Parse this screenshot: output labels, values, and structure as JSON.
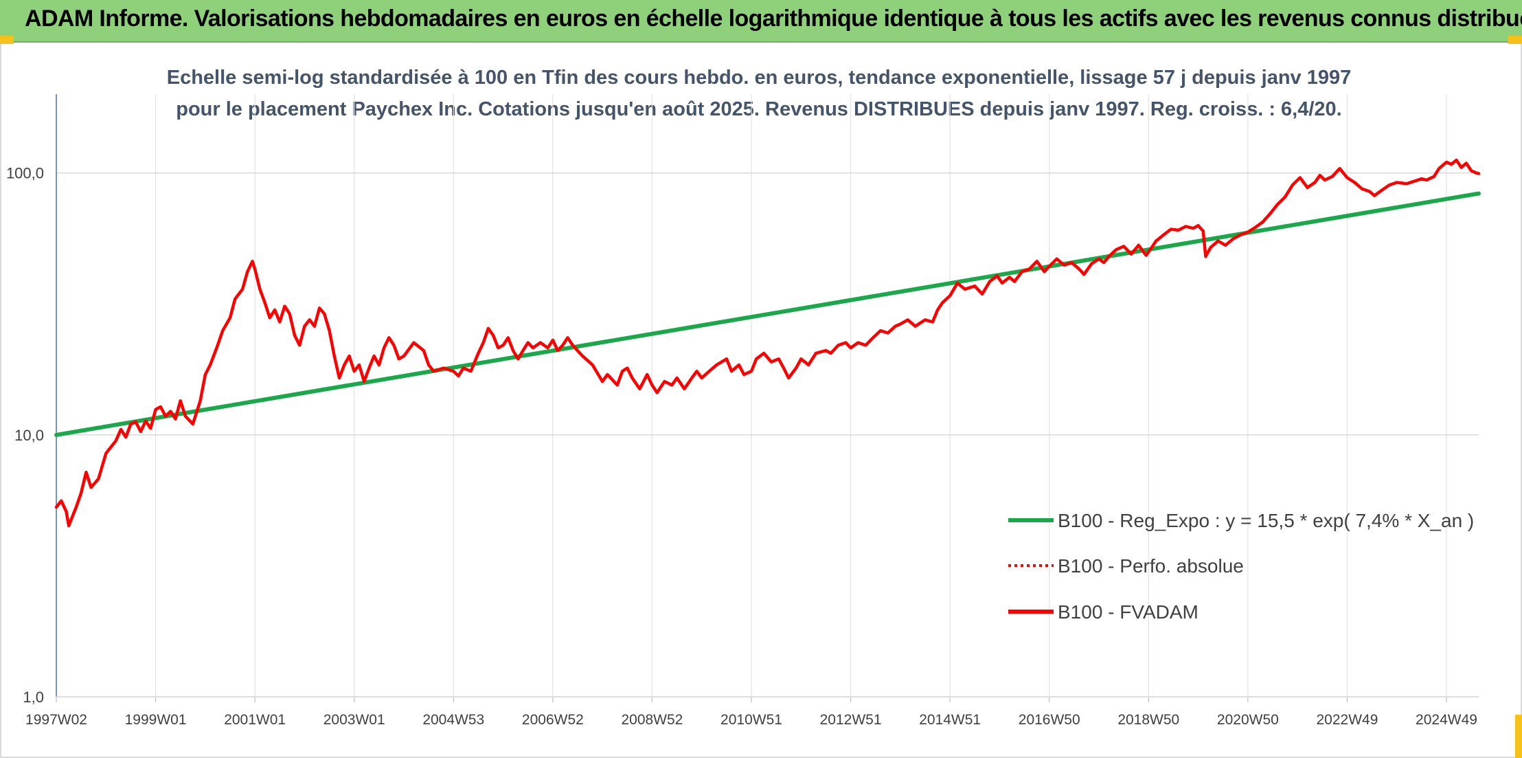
{
  "header": {
    "title": "ADAM Informe. Valorisations hebdomadaires en euros en échelle logarithmique identique à tous les actifs avec les revenus connus distribués"
  },
  "chart_data": {
    "type": "line",
    "title": "Echelle semi-log standardisée à 100 en Tfin des cours hebdo. en euros, tendance exponentielle, lissage 57 j depuis janv 1997 pour le placement Paychex Inc. Cotations jusqu'en août 2025. Revenus DISTRIBUES depuis janv 1997. Reg. croiss. : 6,4/20.",
    "y_scale": "log",
    "ylim": [
      1,
      200
    ],
    "y_ticks": [
      {
        "value": 1,
        "label": "1,0"
      },
      {
        "value": 10,
        "label": "10,0"
      },
      {
        "value": 100,
        "label": "100,0"
      }
    ],
    "x_range": [
      1997.0,
      2025.65
    ],
    "x_ticks": [
      {
        "label": "1997W02",
        "year": 1997.0
      },
      {
        "label": "1999W01",
        "year": 1999.0
      },
      {
        "label": "2001W01",
        "year": 2001.0
      },
      {
        "label": "2003W01",
        "year": 2003.0
      },
      {
        "label": "2004W53",
        "year": 2005.0
      },
      {
        "label": "2006W52",
        "year": 2007.0
      },
      {
        "label": "2008W52",
        "year": 2009.0
      },
      {
        "label": "2010W51",
        "year": 2011.0
      },
      {
        "label": "2012W51",
        "year": 2013.0
      },
      {
        "label": "2014W51",
        "year": 2015.0
      },
      {
        "label": "2016W50",
        "year": 2017.0
      },
      {
        "label": "2018W50",
        "year": 2019.0
      },
      {
        "label": "2020W50",
        "year": 2021.0
      },
      {
        "label": "2022W49",
        "year": 2023.0
      },
      {
        "label": "2024W49",
        "year": 2025.0
      }
    ],
    "grid": true,
    "legend_position": "bottom-right",
    "series": [
      {
        "name": "B100 - Reg_Expo : y = 15,5 * exp( 7,4% *  X_an )",
        "color": "#1aa84a",
        "style": "solid",
        "points": [
          [
            1997.0,
            10.0
          ],
          [
            2025.65,
            83.5
          ]
        ]
      },
      {
        "name": "B100 - Perfo. absolue",
        "color": "#ff0000",
        "style": "dotted",
        "points": []
      },
      {
        "name": "B100 - FVADAM",
        "color": "#ff0000",
        "style": "solid",
        "points": [
          [
            1997.0,
            5.3
          ],
          [
            1997.1,
            5.6
          ],
          [
            1997.2,
            5.1
          ],
          [
            1997.25,
            4.5
          ],
          [
            1997.4,
            5.3
          ],
          [
            1997.5,
            6.0
          ],
          [
            1997.6,
            7.2
          ],
          [
            1997.7,
            6.3
          ],
          [
            1997.85,
            6.8
          ],
          [
            1998.0,
            8.5
          ],
          [
            1998.2,
            9.5
          ],
          [
            1998.3,
            10.5
          ],
          [
            1998.4,
            9.8
          ],
          [
            1998.5,
            11.0
          ],
          [
            1998.6,
            11.2
          ],
          [
            1998.7,
            10.3
          ],
          [
            1998.8,
            11.3
          ],
          [
            1998.9,
            10.6
          ],
          [
            1999.0,
            12.5
          ],
          [
            1999.1,
            12.8
          ],
          [
            1999.2,
            11.8
          ],
          [
            1999.3,
            12.3
          ],
          [
            1999.4,
            11.5
          ],
          [
            1999.5,
            13.5
          ],
          [
            1999.6,
            11.8
          ],
          [
            1999.75,
            11.0
          ],
          [
            1999.9,
            13.5
          ],
          [
            2000.0,
            17.0
          ],
          [
            2000.1,
            18.5
          ],
          [
            2000.25,
            22.0
          ],
          [
            2000.35,
            25.0
          ],
          [
            2000.5,
            28.0
          ],
          [
            2000.6,
            33.0
          ],
          [
            2000.75,
            36.0
          ],
          [
            2000.85,
            42.0
          ],
          [
            2000.95,
            46.0
          ],
          [
            2001.0,
            43.0
          ],
          [
            2001.1,
            36.0
          ],
          [
            2001.2,
            32.0
          ],
          [
            2001.3,
            28.0
          ],
          [
            2001.4,
            30.0
          ],
          [
            2001.5,
            27.0
          ],
          [
            2001.6,
            31.0
          ],
          [
            2001.7,
            29.0
          ],
          [
            2001.8,
            24.0
          ],
          [
            2001.9,
            22.0
          ],
          [
            2002.0,
            26.0
          ],
          [
            2002.1,
            27.5
          ],
          [
            2002.2,
            26.0
          ],
          [
            2002.3,
            30.5
          ],
          [
            2002.4,
            29.0
          ],
          [
            2002.5,
            25.0
          ],
          [
            2002.6,
            20.0
          ],
          [
            2002.7,
            16.5
          ],
          [
            2002.8,
            18.5
          ],
          [
            2002.9,
            20.0
          ],
          [
            2003.0,
            17.5
          ],
          [
            2003.1,
            18.5
          ],
          [
            2003.2,
            16.0
          ],
          [
            2003.3,
            18.0
          ],
          [
            2003.4,
            20.0
          ],
          [
            2003.5,
            18.5
          ],
          [
            2003.6,
            21.5
          ],
          [
            2003.7,
            23.5
          ],
          [
            2003.8,
            22.0
          ],
          [
            2003.9,
            19.5
          ],
          [
            2004.0,
            20.0
          ],
          [
            2004.2,
            22.5
          ],
          [
            2004.4,
            21.0
          ],
          [
            2004.5,
            18.5
          ],
          [
            2004.6,
            17.5
          ],
          [
            2004.8,
            18.0
          ],
          [
            2005.0,
            17.5
          ],
          [
            2005.1,
            16.8
          ],
          [
            2005.2,
            18.0
          ],
          [
            2005.35,
            17.5
          ],
          [
            2005.5,
            20.5
          ],
          [
            2005.6,
            22.5
          ],
          [
            2005.7,
            25.5
          ],
          [
            2005.8,
            24.0
          ],
          [
            2005.9,
            21.5
          ],
          [
            2006.0,
            22.0
          ],
          [
            2006.1,
            23.5
          ],
          [
            2006.2,
            21.0
          ],
          [
            2006.3,
            19.5
          ],
          [
            2006.4,
            21.0
          ],
          [
            2006.5,
            22.5
          ],
          [
            2006.6,
            21.5
          ],
          [
            2006.75,
            22.5
          ],
          [
            2006.9,
            21.5
          ],
          [
            2007.0,
            23.0
          ],
          [
            2007.1,
            21.0
          ],
          [
            2007.2,
            22.0
          ],
          [
            2007.3,
            23.5
          ],
          [
            2007.4,
            22.0
          ],
          [
            2007.6,
            20.0
          ],
          [
            2007.8,
            18.5
          ],
          [
            2008.0,
            16.0
          ],
          [
            2008.1,
            17.0
          ],
          [
            2008.3,
            15.5
          ],
          [
            2008.4,
            17.5
          ],
          [
            2008.5,
            18.0
          ],
          [
            2008.6,
            16.5
          ],
          [
            2008.75,
            15.0
          ],
          [
            2008.9,
            17.0
          ],
          [
            2009.0,
            15.5
          ],
          [
            2009.1,
            14.5
          ],
          [
            2009.25,
            16.0
          ],
          [
            2009.4,
            15.5
          ],
          [
            2009.5,
            16.5
          ],
          [
            2009.65,
            15.0
          ],
          [
            2009.8,
            16.5
          ],
          [
            2009.9,
            17.5
          ],
          [
            2010.0,
            16.5
          ],
          [
            2010.15,
            17.5
          ],
          [
            2010.3,
            18.5
          ],
          [
            2010.5,
            19.5
          ],
          [
            2010.6,
            17.5
          ],
          [
            2010.75,
            18.5
          ],
          [
            2010.85,
            17.0
          ],
          [
            2011.0,
            17.5
          ],
          [
            2011.1,
            19.5
          ],
          [
            2011.25,
            20.5
          ],
          [
            2011.4,
            19.0
          ],
          [
            2011.55,
            19.5
          ],
          [
            2011.65,
            18.0
          ],
          [
            2011.75,
            16.5
          ],
          [
            2011.9,
            18.0
          ],
          [
            2012.0,
            19.5
          ],
          [
            2012.15,
            18.5
          ],
          [
            2012.3,
            20.5
          ],
          [
            2012.5,
            21.0
          ],
          [
            2012.6,
            20.5
          ],
          [
            2012.75,
            22.0
          ],
          [
            2012.9,
            22.5
          ],
          [
            2013.0,
            21.5
          ],
          [
            2013.15,
            22.5
          ],
          [
            2013.3,
            22.0
          ],
          [
            2013.45,
            23.5
          ],
          [
            2013.6,
            25.0
          ],
          [
            2013.75,
            24.5
          ],
          [
            2013.9,
            26.0
          ],
          [
            2014.0,
            26.5
          ],
          [
            2014.15,
            27.5
          ],
          [
            2014.3,
            26.0
          ],
          [
            2014.5,
            27.5
          ],
          [
            2014.65,
            27.0
          ],
          [
            2014.75,
            30.0
          ],
          [
            2014.85,
            32.0
          ],
          [
            2015.0,
            34.0
          ],
          [
            2015.15,
            38.0
          ],
          [
            2015.3,
            36.0
          ],
          [
            2015.5,
            37.0
          ],
          [
            2015.65,
            34.5
          ],
          [
            2015.8,
            38.5
          ],
          [
            2015.95,
            40.5
          ],
          [
            2016.05,
            38.0
          ],
          [
            2016.2,
            40.0
          ],
          [
            2016.3,
            38.5
          ],
          [
            2016.45,
            42.0
          ],
          [
            2016.6,
            43.0
          ],
          [
            2016.75,
            46.0
          ],
          [
            2016.9,
            42.0
          ],
          [
            2017.0,
            44.0
          ],
          [
            2017.15,
            47.0
          ],
          [
            2017.3,
            44.5
          ],
          [
            2017.45,
            45.5
          ],
          [
            2017.6,
            43.0
          ],
          [
            2017.7,
            41.0
          ],
          [
            2017.85,
            45.0
          ],
          [
            2018.0,
            47.0
          ],
          [
            2018.1,
            45.5
          ],
          [
            2018.2,
            48.0
          ],
          [
            2018.35,
            51.0
          ],
          [
            2018.5,
            52.5
          ],
          [
            2018.65,
            49.0
          ],
          [
            2018.8,
            53.0
          ],
          [
            2018.95,
            48.5
          ],
          [
            2019.05,
            51.5
          ],
          [
            2019.15,
            55.0
          ],
          [
            2019.3,
            58.0
          ],
          [
            2019.45,
            61.0
          ],
          [
            2019.6,
            60.5
          ],
          [
            2019.75,
            62.5
          ],
          [
            2019.9,
            61.5
          ],
          [
            2020.0,
            63.0
          ],
          [
            2020.1,
            60.0
          ],
          [
            2020.15,
            48.0
          ],
          [
            2020.25,
            52.0
          ],
          [
            2020.4,
            55.0
          ],
          [
            2020.55,
            53.0
          ],
          [
            2020.7,
            56.0
          ],
          [
            2020.85,
            58.0
          ],
          [
            2021.0,
            59.5
          ],
          [
            2021.15,
            62.0
          ],
          [
            2021.3,
            65.0
          ],
          [
            2021.45,
            70.0
          ],
          [
            2021.6,
            76.0
          ],
          [
            2021.75,
            81.0
          ],
          [
            2021.9,
            90.0
          ],
          [
            2022.05,
            96.0
          ],
          [
            2022.2,
            88.0
          ],
          [
            2022.35,
            92.0
          ],
          [
            2022.45,
            98.0
          ],
          [
            2022.55,
            94.0
          ],
          [
            2022.7,
            97.0
          ],
          [
            2022.85,
            104.0
          ],
          [
            2023.0,
            96.0
          ],
          [
            2023.15,
            92.0
          ],
          [
            2023.3,
            87.0
          ],
          [
            2023.45,
            85.0
          ],
          [
            2023.55,
            82.0
          ],
          [
            2023.7,
            86.0
          ],
          [
            2023.85,
            90.0
          ],
          [
            2024.0,
            92.0
          ],
          [
            2024.2,
            91.0
          ],
          [
            2024.35,
            93.0
          ],
          [
            2024.5,
            95.0
          ],
          [
            2024.6,
            94.0
          ],
          [
            2024.75,
            97.0
          ],
          [
            2024.85,
            104.0
          ],
          [
            2025.0,
            110.0
          ],
          [
            2025.1,
            108.0
          ],
          [
            2025.2,
            112.0
          ],
          [
            2025.3,
            105.0
          ],
          [
            2025.4,
            109.0
          ],
          [
            2025.5,
            102.0
          ],
          [
            2025.6,
            100.0
          ],
          [
            2025.65,
            99.5
          ]
        ]
      }
    ]
  }
}
